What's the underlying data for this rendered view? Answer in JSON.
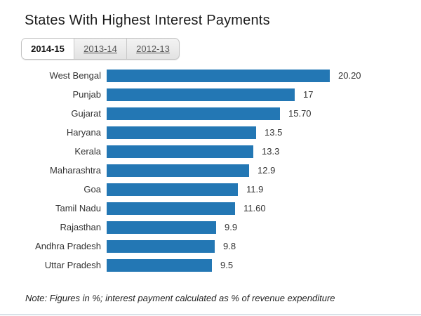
{
  "page": {
    "title": "States With Highest Interest Payments",
    "note": "Note: Figures in %; interest payment calculated as % of revenue expenditure"
  },
  "tabs": [
    {
      "label": "2014-15",
      "active": true
    },
    {
      "label": "2013-14",
      "active": false
    },
    {
      "label": "2012-13",
      "active": false
    }
  ],
  "chart_data": {
    "type": "bar",
    "orientation": "horizontal",
    "title": "States With Highest Interest Payments",
    "period": "2014-15",
    "categories": [
      "West Bengal",
      "Punjab",
      "Gujarat",
      "Haryana",
      "Kerala",
      "Maharashtra",
      "Goa",
      "Tamil Nadu",
      "Rajasthan",
      "Andhra Pradesh",
      "Uttar Pradesh"
    ],
    "values": [
      20.2,
      17,
      15.7,
      13.5,
      13.3,
      12.9,
      11.9,
      11.6,
      9.9,
      9.8,
      9.5
    ],
    "value_labels": [
      "20.20",
      "17",
      "15.70",
      "13.5",
      "13.3",
      "12.9",
      "11.9",
      "11.60",
      "9.9",
      "9.8",
      "9.5"
    ],
    "unit": "%",
    "bar_color": "#2377b4",
    "xlim": [
      0,
      20.2
    ],
    "grid": false,
    "legend": false,
    "note": "Note: Figures in %; interest payment calculated as % of revenue expenditure"
  }
}
